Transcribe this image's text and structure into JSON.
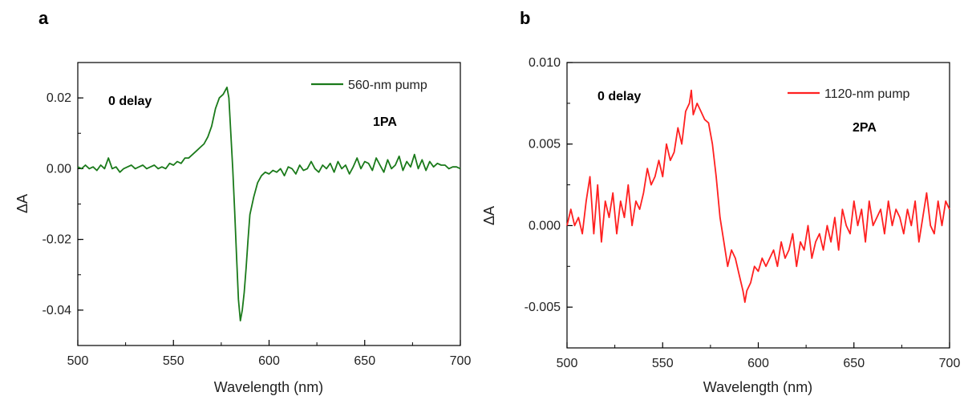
{
  "chart_data": [
    {
      "type": "line",
      "panel_label": "a",
      "xlabel": "Wavelength (nm)",
      "ylabel": "ΔA",
      "xlim": [
        500,
        700
      ],
      "ylim": [
        -0.05,
        0.03
      ],
      "xticks": [
        500,
        550,
        600,
        650,
        700
      ],
      "xtick_labels": [
        "500",
        "550",
        "600",
        "650",
        "700"
      ],
      "yticks": [
        -0.04,
        -0.02,
        0.0,
        0.02
      ],
      "ytick_labels": [
        "-0.04",
        "-0.02",
        "0.00",
        "0.02"
      ],
      "grid": false,
      "legend_position": "top-right",
      "annotations": [
        {
          "text": "0 delay",
          "x": 515,
          "y": 0.019
        },
        {
          "text": "1PA",
          "x": 620,
          "y": 0.012
        }
      ],
      "series": [
        {
          "name": "560-nm pump",
          "color": "#1a7a1a",
          "x": [
            500,
            502,
            504,
            506,
            508,
            510,
            512,
            514,
            516,
            518,
            520,
            522,
            524,
            526,
            528,
            530,
            532,
            534,
            536,
            538,
            540,
            542,
            544,
            546,
            548,
            550,
            552,
            554,
            556,
            558,
            560,
            562,
            564,
            566,
            568,
            570,
            572,
            574,
            576,
            578,
            579,
            580,
            581,
            582,
            583,
            584,
            585,
            586,
            587,
            588,
            589,
            590,
            592,
            594,
            596,
            598,
            600,
            602,
            604,
            606,
            608,
            610,
            612,
            614,
            616,
            618,
            620,
            622,
            624,
            626,
            628,
            630,
            632,
            634,
            636,
            638,
            640,
            642,
            644,
            646,
            648,
            650,
            652,
            654,
            656,
            658,
            660,
            662,
            664,
            666,
            668,
            670,
            672,
            674,
            676,
            678,
            680,
            682,
            684,
            686,
            688,
            690,
            692,
            694,
            696,
            698,
            700
          ],
          "y": [
            0.0005,
            0.0,
            0.001,
            0.0,
            0.0005,
            -0.0005,
            0.001,
            0.0,
            0.003,
            0.0,
            0.0005,
            -0.001,
            0.0,
            0.0005,
            0.001,
            0.0,
            0.0005,
            0.001,
            0.0,
            0.0005,
            0.001,
            0.0,
            0.0005,
            0.0,
            0.0015,
            0.001,
            0.002,
            0.0015,
            0.003,
            0.003,
            0.004,
            0.005,
            0.006,
            0.007,
            0.009,
            0.012,
            0.017,
            0.02,
            0.021,
            0.023,
            0.02,
            0.01,
            0.0,
            -0.012,
            -0.025,
            -0.037,
            -0.043,
            -0.04,
            -0.035,
            -0.028,
            -0.02,
            -0.013,
            -0.008,
            -0.004,
            -0.002,
            -0.001,
            -0.0015,
            -0.0005,
            -0.001,
            0.0,
            -0.002,
            0.0005,
            0.0,
            -0.0015,
            0.001,
            -0.0005,
            0.0,
            0.002,
            0.0,
            -0.001,
            0.001,
            0.0,
            0.0015,
            -0.001,
            0.002,
            0.0,
            0.001,
            -0.0015,
            0.0005,
            0.003,
            0.0,
            0.002,
            0.0015,
            -0.0005,
            0.003,
            0.001,
            -0.001,
            0.0025,
            0.0,
            0.001,
            0.0035,
            -0.0005,
            0.002,
            0.0005,
            0.004,
            0.0,
            0.0025,
            -0.0005,
            0.002,
            0.0005,
            0.0015,
            0.001,
            0.001,
            0.0,
            0.0005,
            0.0005,
            0.0
          ]
        }
      ]
    },
    {
      "type": "line",
      "panel_label": "b",
      "xlabel": "Wavelength (nm)",
      "ylabel": "ΔA",
      "xlim": [
        500,
        700
      ],
      "ylim": [
        -0.0075,
        0.01
      ],
      "xticks": [
        500,
        550,
        600,
        650,
        700
      ],
      "xtick_labels": [
        "500",
        "550",
        "600",
        "650",
        "700"
      ],
      "yticks": [
        -0.005,
        0.0,
        0.005,
        0.01
      ],
      "ytick_labels": [
        "-0.005",
        "0.000",
        "0.005",
        "0.010"
      ],
      "grid": false,
      "legend_position": "top-right",
      "annotations": [
        {
          "text": "0 delay",
          "x": 517,
          "y": 0.0075
        },
        {
          "text": "2PA",
          "x": 615,
          "y": 0.0055
        }
      ],
      "series": [
        {
          "name": "1120-nm pump",
          "color": "#ff2020",
          "x": [
            500,
            502,
            504,
            506,
            508,
            510,
            512,
            514,
            516,
            518,
            520,
            522,
            524,
            526,
            528,
            530,
            532,
            534,
            536,
            538,
            540,
            542,
            544,
            546,
            548,
            550,
            552,
            554,
            556,
            558,
            560,
            562,
            564,
            565,
            566,
            568,
            570,
            572,
            574,
            576,
            578,
            580,
            582,
            584,
            586,
            588,
            590,
            592,
            593,
            594,
            596,
            598,
            600,
            602,
            604,
            606,
            608,
            610,
            612,
            614,
            616,
            618,
            620,
            622,
            624,
            626,
            628,
            630,
            632,
            634,
            636,
            638,
            640,
            642,
            644,
            646,
            648,
            650,
            652,
            654,
            656,
            658,
            660,
            662,
            664,
            666,
            668,
            670,
            672,
            674,
            676,
            678,
            680,
            682,
            684,
            686,
            688,
            690,
            692,
            694,
            696,
            698,
            700
          ],
          "y": [
            0.0,
            0.001,
            0.0,
            0.0005,
            -0.0005,
            0.0015,
            0.003,
            -0.0005,
            0.0025,
            -0.001,
            0.0015,
            0.0005,
            0.002,
            -0.0005,
            0.0015,
            0.0005,
            0.0025,
            0.0,
            0.0015,
            0.001,
            0.002,
            0.0035,
            0.0025,
            0.003,
            0.004,
            0.003,
            0.005,
            0.004,
            0.0045,
            0.006,
            0.005,
            0.007,
            0.0075,
            0.0083,
            0.0068,
            0.0075,
            0.007,
            0.0065,
            0.0063,
            0.005,
            0.003,
            0.0005,
            -0.001,
            -0.0025,
            -0.0015,
            -0.002,
            -0.003,
            -0.004,
            -0.0047,
            -0.004,
            -0.0035,
            -0.0025,
            -0.0028,
            -0.002,
            -0.0025,
            -0.002,
            -0.0015,
            -0.0025,
            -0.001,
            -0.002,
            -0.0015,
            -0.0005,
            -0.0025,
            -0.001,
            -0.0015,
            0.0,
            -0.002,
            -0.001,
            -0.0005,
            -0.0015,
            0.0,
            -0.001,
            0.0005,
            -0.0015,
            0.001,
            0.0,
            -0.0005,
            0.0015,
            0.0,
            0.001,
            -0.001,
            0.0015,
            0.0,
            0.0005,
            0.001,
            -0.0005,
            0.0015,
            0.0,
            0.001,
            0.0005,
            -0.0005,
            0.001,
            0.0,
            0.0015,
            -0.001,
            0.0005,
            0.002,
            0.0,
            -0.0005,
            0.0015,
            0.0,
            0.0015,
            0.001
          ]
        }
      ]
    }
  ]
}
